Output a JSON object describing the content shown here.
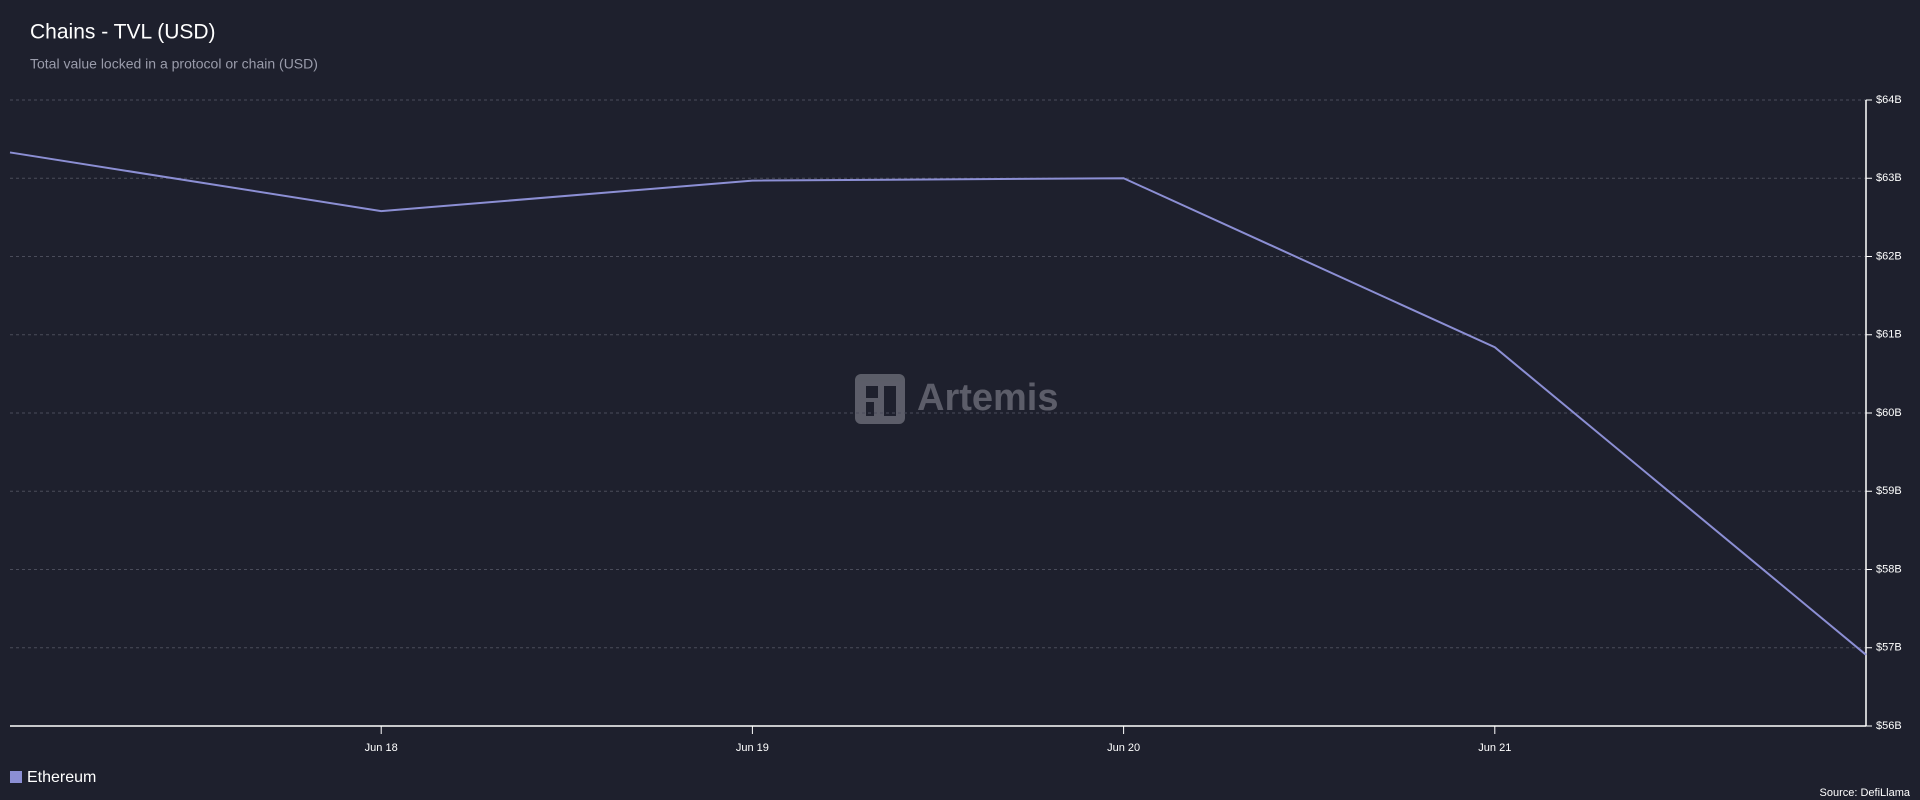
{
  "chart_data": {
    "type": "line",
    "title": "Chains - TVL (USD)",
    "subtitle": "Total value locked in a protocol or chain (USD)",
    "categories": [
      null,
      "Jun 18",
      "Jun 19",
      "Jun 20",
      "Jun 21",
      null
    ],
    "series": [
      {
        "name": "Ethereum",
        "color": "#8c8fd4",
        "values": [
          63330000000,
          62580000000,
          62970000000,
          63000000000,
          60840000000,
          56910000000
        ]
      }
    ],
    "ylim": [
      56000000000,
      64000000000
    ],
    "yticks": [
      {
        "value": 56000000000,
        "label": "$56B"
      },
      {
        "value": 57000000000,
        "label": "$57B"
      },
      {
        "value": 58000000000,
        "label": "$58B"
      },
      {
        "value": 59000000000,
        "label": "$59B"
      },
      {
        "value": 60000000000,
        "label": "$60B"
      },
      {
        "value": 61000000000,
        "label": "$61B"
      },
      {
        "value": 62000000000,
        "label": "$62B"
      },
      {
        "value": 63000000000,
        "label": "$63B"
      },
      {
        "value": 64000000000,
        "label": "$64B"
      }
    ],
    "grid": true,
    "watermark": "Artemis",
    "source": "Source: DefiLlama"
  }
}
